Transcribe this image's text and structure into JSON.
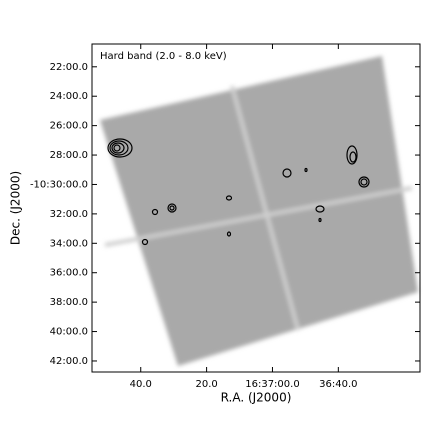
{
  "chart_data": {
    "type": "image",
    "annotation": "Hard band (2.0 - 8.0 keV)",
    "x_label": "R.A. (J2000)",
    "y_label": "Dec. (J2000)",
    "xlim": [
      114.8,
      15.2
    ],
    "ylim": [
      42.75,
      20.45
    ],
    "xticks": [
      {
        "value": 100,
        "label": "40.0"
      },
      {
        "value": 80,
        "label": "20.0"
      },
      {
        "value": 60,
        "label": "16:37:00.0"
      },
      {
        "value": 40,
        "label": "36:40.0"
      }
    ],
    "yticks": [
      {
        "value": 22,
        "label": "22:00.0"
      },
      {
        "value": 24,
        "label": "24:00.0"
      },
      {
        "value": 26,
        "label": "26:00.0"
      },
      {
        "value": 28,
        "label": "28:00.0"
      },
      {
        "value": 30,
        "label": "-10:30:00.0"
      },
      {
        "value": 32,
        "label": "32:00.0"
      },
      {
        "value": 34,
        "label": "34:00.0"
      },
      {
        "value": 36,
        "label": "36:00.0"
      },
      {
        "value": 38,
        "label": "38:00.0"
      },
      {
        "value": 40,
        "label": "40:00.0"
      },
      {
        "value": 42,
        "label": "42:00.0"
      }
    ]
  }
}
